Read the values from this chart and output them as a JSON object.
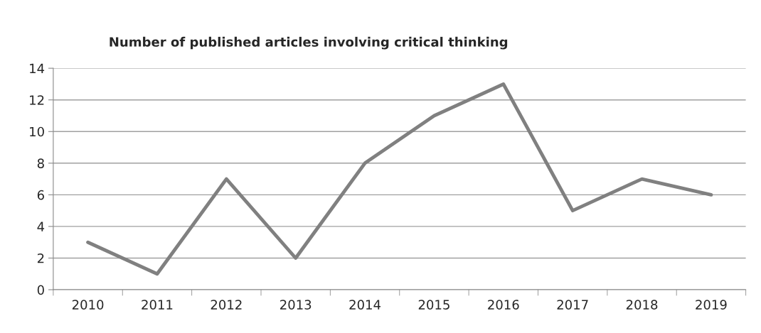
{
  "chart_data": {
    "type": "line",
    "title": "Number of published articles involving critical thinking",
    "categories": [
      "2010",
      "2011",
      "2012",
      "2013",
      "2014",
      "2015",
      "2016",
      "2017",
      "2018",
      "2019"
    ],
    "series": [
      {
        "color": "#808080",
        "values": [
          3,
          1,
          7,
          2,
          8,
          11,
          13,
          5,
          7,
          6
        ]
      }
    ],
    "ylim": [
      0,
      14
    ],
    "yticks": [
      0,
      2,
      4,
      6,
      8,
      10,
      12,
      14
    ],
    "grid": "y",
    "marker": "none",
    "line_style": "solid"
  }
}
